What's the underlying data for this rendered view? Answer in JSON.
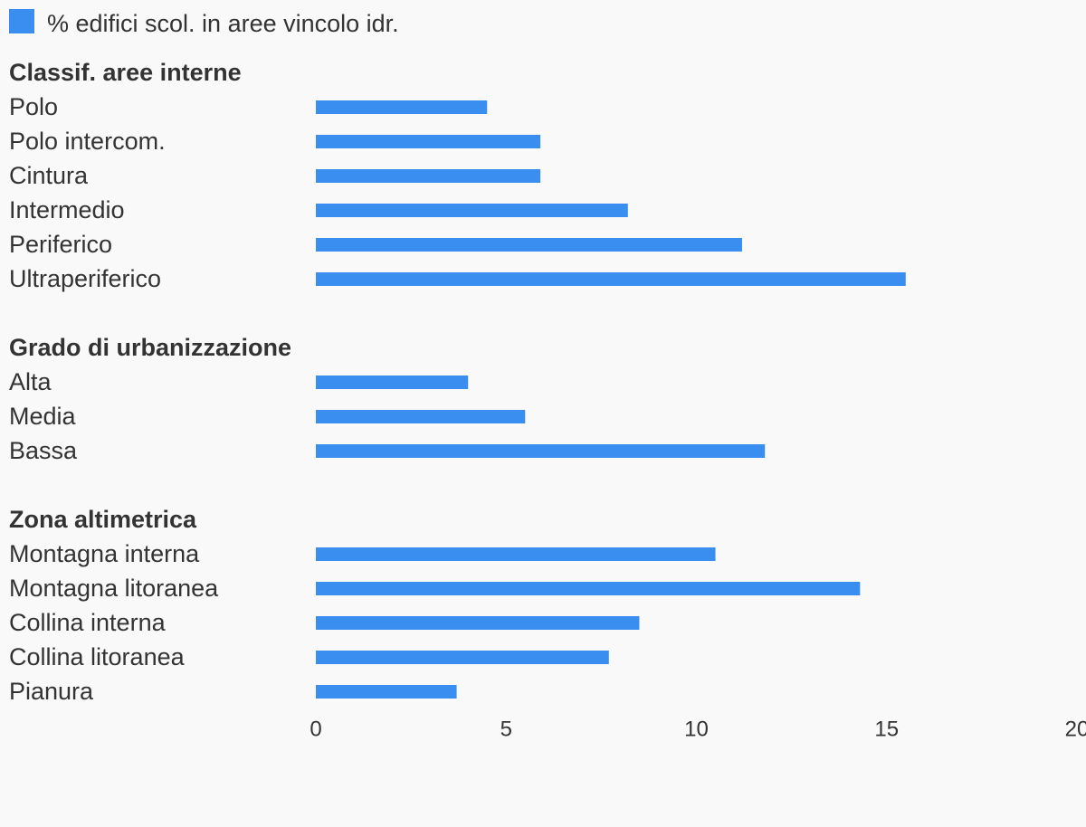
{
  "legend": {
    "label": "% edifici scol. in aree vincolo idr.",
    "color": "#3a8eef"
  },
  "chart_data": {
    "type": "bar",
    "orientation": "horizontal",
    "series": [
      {
        "name": "% edifici scol. in aree vincolo idr.",
        "color": "#3a8eef"
      }
    ],
    "groups": [
      {
        "title": "Classif. aree interne",
        "categories": [
          "Polo",
          "Polo intercom.",
          "Cintura",
          "Intermedio",
          "Periferico",
          "Ultraperiferico"
        ],
        "values": [
          4.5,
          5.9,
          5.9,
          8.2,
          11.2,
          15.5
        ]
      },
      {
        "title": "Grado di urbanizzazione",
        "categories": [
          "Alta",
          "Media",
          "Bassa"
        ],
        "values": [
          4.0,
          5.5,
          11.8
        ]
      },
      {
        "title": "Zona altimetrica",
        "categories": [
          "Montagna interna",
          "Montagna litoranea",
          "Collina interna",
          "Collina litoranea",
          "Pianura"
        ],
        "values": [
          10.5,
          14.3,
          8.5,
          7.7,
          3.7
        ]
      }
    ],
    "xlim": [
      0,
      20
    ],
    "xticks": [
      0,
      5,
      10,
      15,
      20
    ],
    "grid": false,
    "legend_position": "top-left"
  }
}
